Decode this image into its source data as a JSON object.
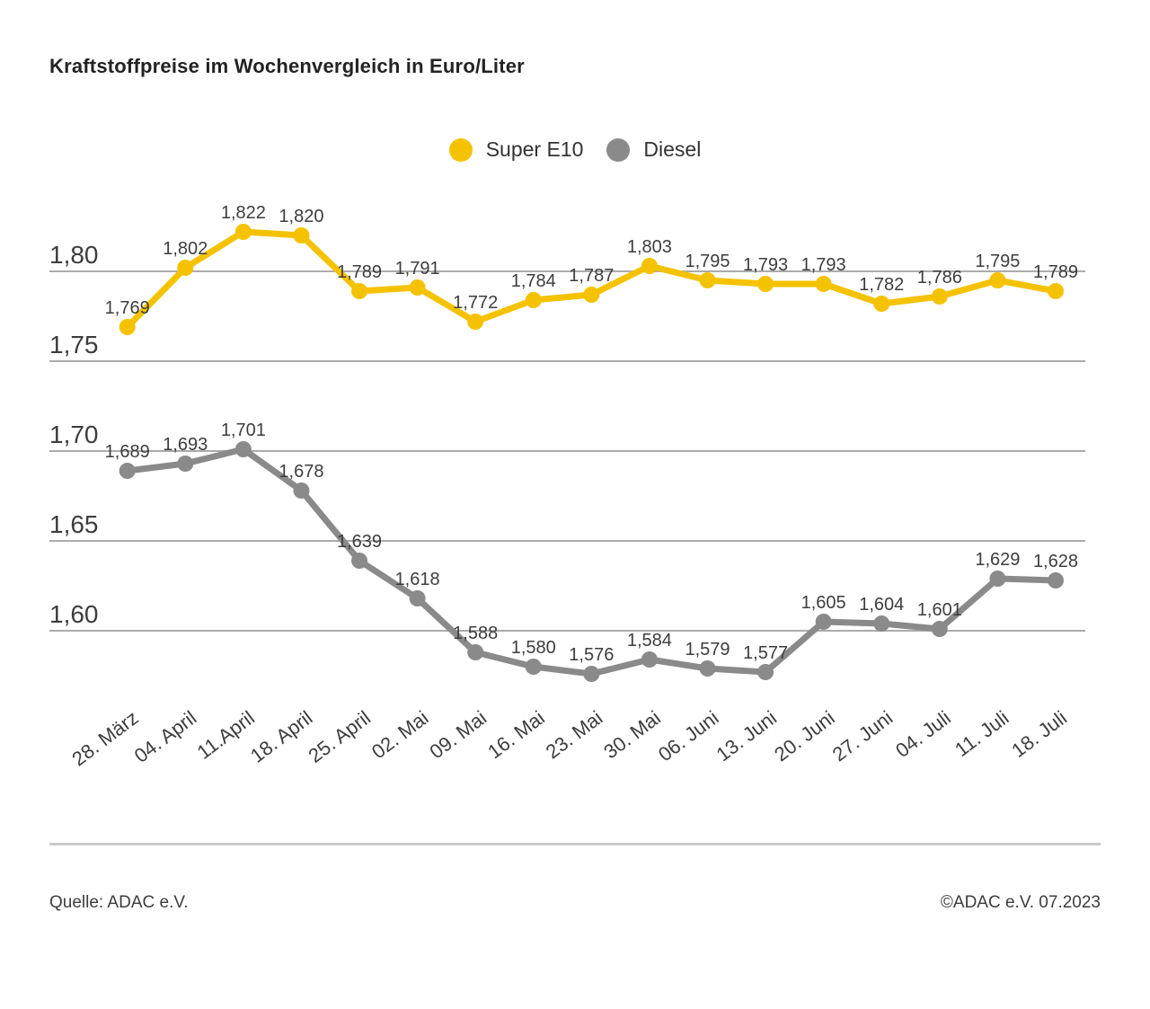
{
  "title": "Kraftstoffpreise im Wochenvergleich in Euro/Liter",
  "legend": {
    "items": [
      {
        "label": "Super E10",
        "color": "#F5C200"
      },
      {
        "label": "Diesel",
        "color": "#8A8A8A"
      }
    ]
  },
  "footer": {
    "source": "Quelle: ADAC e.V.",
    "copyright": "©ADAC e.V. 07.2023"
  },
  "colors": {
    "grid": "#ABABAB",
    "text": "#3D3D3D",
    "divider": "#C9C9C9"
  },
  "chart_data": {
    "type": "line",
    "title": "Kraftstoffpreise im Wochenvergleich in Euro/Liter",
    "categories": [
      "28. März",
      "04. April",
      "11.April",
      "18. April",
      "25. April",
      "02. Mai",
      "09. Mai",
      "16. Mai",
      "23. Mai",
      "30. Mai",
      "06. Juni",
      "13. Juni",
      "20. Juni",
      "27. Juni",
      "04. Juli",
      "11. Juli",
      "18. Juli"
    ],
    "series": [
      {
        "name": "Super E10",
        "color": "#F5C200",
        "values": [
          1.769,
          1.802,
          1.822,
          1.82,
          1.789,
          1.791,
          1.772,
          1.784,
          1.787,
          1.803,
          1.795,
          1.793,
          1.793,
          1.782,
          1.786,
          1.795,
          1.789
        ]
      },
      {
        "name": "Diesel",
        "color": "#8A8A8A",
        "values": [
          1.689,
          1.693,
          1.701,
          1.678,
          1.639,
          1.618,
          1.588,
          1.58,
          1.576,
          1.584,
          1.579,
          1.577,
          1.605,
          1.604,
          1.601,
          1.629,
          1.628
        ]
      }
    ],
    "y_ticks": [
      {
        "label": "1,80",
        "value": 1.8
      },
      {
        "label": "1,75",
        "value": 1.75
      },
      {
        "label": "1,70",
        "value": 1.7
      },
      {
        "label": "1,65",
        "value": 1.65
      },
      {
        "label": "1,60",
        "value": 1.6
      }
    ],
    "ylim": [
      1.555,
      1.835
    ],
    "ylabel": "Euro/Liter",
    "xlabel": "",
    "grid": true,
    "legend_position": "top-center",
    "value_labels": true,
    "value_label_format": "comma-3"
  }
}
